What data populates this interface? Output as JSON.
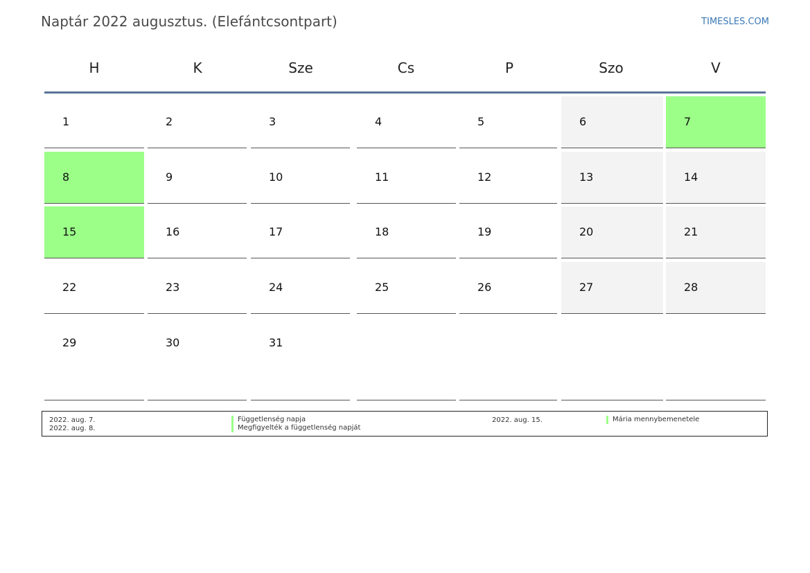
{
  "header": {
    "title": "Naptár 2022 augusztus. (Elefántcsontpart)",
    "brand": "TIMESLES.COM"
  },
  "weekdays": [
    "H",
    "K",
    "Sze",
    "Cs",
    "P",
    "Szo",
    "V"
  ],
  "weeks": [
    [
      {
        "day": "1",
        "type": "normal"
      },
      {
        "day": "2",
        "type": "normal"
      },
      {
        "day": "3",
        "type": "normal"
      },
      {
        "day": "4",
        "type": "normal"
      },
      {
        "day": "5",
        "type": "normal"
      },
      {
        "day": "6",
        "type": "weekend"
      },
      {
        "day": "7",
        "type": "holiday"
      }
    ],
    [
      {
        "day": "8",
        "type": "holiday"
      },
      {
        "day": "9",
        "type": "normal"
      },
      {
        "day": "10",
        "type": "normal"
      },
      {
        "day": "11",
        "type": "normal"
      },
      {
        "day": "12",
        "type": "normal"
      },
      {
        "day": "13",
        "type": "weekend"
      },
      {
        "day": "14",
        "type": "weekend"
      }
    ],
    [
      {
        "day": "15",
        "type": "holiday"
      },
      {
        "day": "16",
        "type": "normal"
      },
      {
        "day": "17",
        "type": "normal"
      },
      {
        "day": "18",
        "type": "normal"
      },
      {
        "day": "19",
        "type": "normal"
      },
      {
        "day": "20",
        "type": "weekend"
      },
      {
        "day": "21",
        "type": "weekend"
      }
    ],
    [
      {
        "day": "22",
        "type": "normal"
      },
      {
        "day": "23",
        "type": "normal"
      },
      {
        "day": "24",
        "type": "normal"
      },
      {
        "day": "25",
        "type": "normal"
      },
      {
        "day": "26",
        "type": "normal"
      },
      {
        "day": "27",
        "type": "weekend"
      },
      {
        "day": "28",
        "type": "weekend"
      }
    ],
    [
      {
        "day": "29",
        "type": "normal"
      },
      {
        "day": "30",
        "type": "normal"
      },
      {
        "day": "31",
        "type": "normal"
      },
      {
        "day": "",
        "type": "empty"
      },
      {
        "day": "",
        "type": "empty"
      },
      {
        "day": "",
        "type": "empty"
      },
      {
        "day": "",
        "type": "empty"
      }
    ]
  ],
  "holidays": [
    {
      "date": "2022. aug. 7.",
      "name": "Függetlenség napja"
    },
    {
      "date": "2022. aug. 8.",
      "name": "Megfigyelték a függetlenség napját"
    },
    {
      "date": "2022. aug. 15.",
      "name": "Mária mennybemenetele"
    }
  ],
  "colors": {
    "holiday": "#9bff88",
    "weekend": "#f3f3f3",
    "header_rule": "#5a7398",
    "brand": "#3b78b5"
  }
}
